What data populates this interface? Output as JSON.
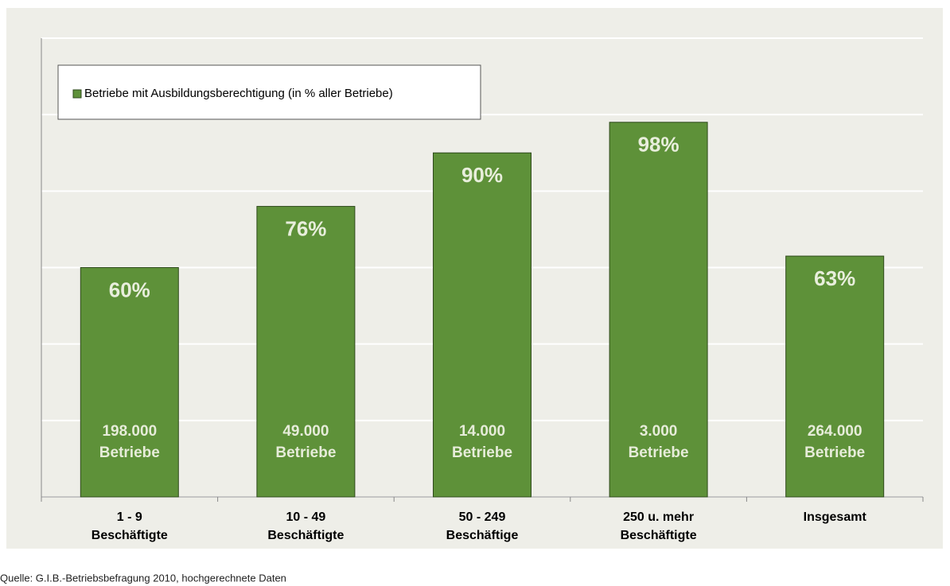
{
  "chart_data": {
    "type": "bar",
    "categories": [
      [
        "1 - 9",
        "Beschäftigte"
      ],
      [
        "10 - 49",
        "Beschäftigte"
      ],
      [
        "50 - 249",
        "Beschäftige"
      ],
      [
        "250 u. mehr",
        "Beschäftigte"
      ],
      [
        "Insgesamt"
      ]
    ],
    "series": [
      {
        "name": "Betriebe mit Ausbildungsberechtigung (in % aller Betriebe)",
        "color": "#5e9139",
        "values": [
          60,
          76,
          90,
          98,
          63
        ],
        "value_labels": [
          "60%",
          "76%",
          "90%",
          "98%",
          "63%"
        ]
      }
    ],
    "bar_notes": [
      [
        "198.000",
        "Betriebe"
      ],
      [
        "49.000",
        "Betriebe"
      ],
      [
        "14.000",
        "Betriebe"
      ],
      [
        "3.000",
        "Betriebe"
      ],
      [
        "264.000",
        "Betriebe"
      ]
    ],
    "ylim": [
      0,
      120
    ],
    "yticks": [
      0,
      20,
      40,
      60,
      80,
      100,
      120
    ],
    "grid": true,
    "legend": "top-left",
    "source": "Quelle: G.I.B.-Betriebsbefragung 2010, hochgerechnete Daten"
  }
}
